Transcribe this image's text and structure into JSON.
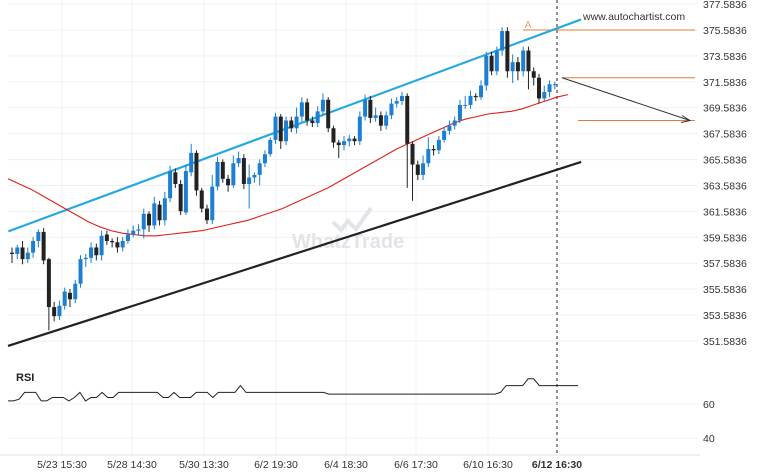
{
  "source_label": "www.autochartist.com",
  "watermark": "WhatzTrade",
  "chart_data": {
    "type": "candlestick",
    "y_ticks": [
      "377.5836",
      "375.5836",
      "373.5836",
      "371.5836",
      "369.5836",
      "367.5836",
      "365.5836",
      "363.5836",
      "361.5836",
      "359.5836",
      "357.5836",
      "355.5836",
      "353.5836",
      "351.5836"
    ],
    "ylim": [
      350.5,
      377.9
    ],
    "x_labels": [
      "5/23 15:30",
      "5/28 14:30",
      "5/30 13:30",
      "6/2 19:30",
      "6/4 18:30",
      "6/6 17:30",
      "6/10 16:30",
      "6/12 16:30"
    ],
    "current_time_label": "6/12 16:30",
    "candles": [
      [
        358.4,
        358.3,
        358.8,
        357.6
      ],
      [
        358.3,
        358.8,
        359.0,
        357.9
      ],
      [
        358.8,
        357.9,
        359.3,
        357.5
      ],
      [
        357.9,
        358.4,
        358.8,
        357.6
      ],
      [
        358.4,
        359.3,
        359.6,
        358.0
      ],
      [
        359.3,
        360.0,
        360.2,
        358.8
      ],
      [
        360.0,
        357.8,
        360.3,
        357.5
      ],
      [
        357.9,
        354.2,
        358.0,
        352.4
      ],
      [
        354.2,
        353.5,
        354.6,
        353.1
      ],
      [
        353.5,
        354.3,
        354.7,
        353.2
      ],
      [
        354.3,
        355.4,
        355.7,
        354.0
      ],
      [
        355.3,
        354.8,
        355.6,
        354.2
      ],
      [
        354.8,
        356.0,
        356.3,
        354.5
      ],
      [
        356.0,
        357.9,
        358.2,
        355.7
      ],
      [
        357.9,
        358.0,
        358.3,
        357.3
      ],
      [
        358.0,
        358.8,
        359.2,
        357.6
      ],
      [
        358.8,
        358.2,
        359.1,
        357.8
      ],
      [
        358.2,
        359.7,
        360.1,
        357.8
      ],
      [
        359.8,
        359.3,
        360.1,
        359.0
      ],
      [
        359.3,
        359.2,
        359.5,
        358.8
      ],
      [
        359.2,
        358.8,
        359.6,
        358.4
      ],
      [
        358.8,
        359.3,
        359.6,
        358.5
      ],
      [
        359.3,
        359.8,
        360.2,
        359.1
      ],
      [
        359.8,
        360.1,
        360.5,
        359.6
      ],
      [
        360.1,
        360.2,
        360.6,
        359.7
      ],
      [
        360.2,
        361.4,
        361.8,
        359.5
      ],
      [
        361.4,
        360.5,
        361.6,
        360.0
      ],
      [
        360.5,
        362.2,
        362.7,
        360.2
      ],
      [
        362.1,
        360.9,
        362.4,
        360.5
      ],
      [
        360.9,
        362.6,
        363.1,
        360.5
      ],
      [
        362.6,
        364.7,
        365.1,
        362.3
      ],
      [
        364.6,
        363.7,
        364.9,
        363.4
      ],
      [
        363.7,
        361.6,
        364.0,
        361.3
      ],
      [
        361.5,
        364.7,
        365.2,
        361.3
      ],
      [
        364.6,
        366.1,
        366.8,
        364.3
      ],
      [
        366.1,
        363.2,
        366.3,
        362.8
      ],
      [
        363.2,
        361.8,
        363.4,
        361.5
      ],
      [
        361.8,
        360.9,
        362.1,
        360.6
      ],
      [
        360.9,
        363.5,
        364.4,
        360.6
      ],
      [
        363.5,
        365.4,
        365.8,
        363.2
      ],
      [
        365.4,
        364.1,
        365.6,
        363.8
      ],
      [
        364.1,
        363.6,
        364.4,
        363.1
      ],
      [
        363.6,
        365.3,
        365.9,
        363.4
      ],
      [
        365.3,
        365.7,
        366.2,
        365.0
      ],
      [
        365.7,
        363.7,
        366.0,
        363.3
      ],
      [
        363.7,
        364.2,
        365.2,
        361.8
      ],
      [
        364.2,
        364.4,
        364.6,
        363.8
      ],
      [
        364.4,
        365.3,
        365.6,
        363.6
      ],
      [
        365.3,
        366.0,
        366.3,
        365.0
      ],
      [
        366.0,
        367.1,
        367.3,
        365.8
      ],
      [
        367.1,
        368.9,
        369.2,
        366.8
      ],
      [
        368.9,
        367.0,
        369.1,
        366.4
      ],
      [
        367.0,
        368.6,
        368.9,
        366.7
      ],
      [
        368.6,
        368.0,
        368.9,
        367.7
      ],
      [
        368.0,
        368.9,
        369.6,
        367.6
      ],
      [
        368.9,
        370.0,
        370.4,
        368.5
      ],
      [
        370.0,
        368.6,
        370.3,
        368.2
      ],
      [
        368.6,
        368.4,
        368.9,
        368.1
      ],
      [
        368.4,
        369.3,
        369.7,
        368.1
      ],
      [
        369.3,
        370.2,
        370.7,
        369.0
      ],
      [
        370.2,
        368.0,
        370.4,
        367.7
      ],
      [
        368.0,
        366.9,
        368.2,
        366.5
      ],
      [
        366.9,
        366.7,
        367.1,
        365.7
      ],
      [
        366.7,
        367.0,
        367.4,
        366.3
      ],
      [
        367.0,
        367.2,
        367.5,
        366.6
      ],
      [
        367.2,
        367.0,
        367.4,
        366.7
      ],
      [
        367.0,
        368.9,
        369.3,
        366.7
      ],
      [
        368.9,
        370.2,
        370.6,
        368.6
      ],
      [
        370.2,
        368.8,
        370.5,
        368.4
      ],
      [
        368.8,
        369.0,
        369.6,
        368.5
      ],
      [
        369.0,
        368.2,
        369.3,
        367.8
      ],
      [
        368.2,
        369.0,
        369.3,
        367.9
      ],
      [
        369.0,
        369.9,
        370.3,
        368.7
      ],
      [
        369.9,
        370.1,
        370.4,
        369.6
      ],
      [
        370.1,
        370.5,
        370.8,
        369.8
      ],
      [
        370.5,
        366.8,
        370.7,
        363.4
      ],
      [
        366.8,
        365.2,
        367.0,
        362.4
      ],
      [
        365.2,
        364.4,
        365.5,
        364.0
      ],
      [
        364.4,
        365.3,
        365.9,
        364.0
      ],
      [
        365.3,
        366.4,
        367.3,
        365.0
      ],
      [
        366.4,
        366.3,
        366.7,
        365.9
      ],
      [
        366.3,
        367.1,
        367.4,
        366.0
      ],
      [
        367.1,
        367.8,
        368.1,
        366.9
      ],
      [
        367.8,
        368.2,
        368.6,
        367.5
      ],
      [
        368.2,
        368.6,
        368.9,
        367.9
      ],
      [
        368.6,
        369.8,
        370.2,
        368.4
      ],
      [
        369.8,
        369.8,
        370.5,
        369.5
      ],
      [
        369.8,
        370.5,
        370.9,
        369.5
      ],
      [
        370.5,
        370.4,
        370.7,
        370.1
      ],
      [
        370.4,
        371.3,
        371.7,
        370.2
      ],
      [
        371.3,
        373.6,
        373.9,
        370.9
      ],
      [
        373.6,
        372.4,
        373.9,
        372.1
      ],
      [
        372.4,
        374.0,
        374.3,
        372.1
      ],
      [
        374.0,
        375.5,
        375.8,
        373.6
      ],
      [
        375.5,
        372.4,
        375.8,
        371.9
      ],
      [
        372.4,
        373.1,
        373.7,
        371.5
      ],
      [
        373.1,
        372.4,
        373.5,
        371.7
      ],
      [
        372.4,
        374.0,
        374.3,
        372.0
      ],
      [
        374.0,
        372.4,
        374.3,
        371.0
      ],
      [
        372.4,
        371.9,
        372.7,
        371.3
      ],
      [
        371.9,
        370.3,
        372.2,
        369.9
      ],
      [
        370.3,
        370.8,
        371.3,
        370.1
      ],
      [
        370.8,
        371.4,
        371.7,
        370.4
      ],
      [
        371.4,
        371.4,
        371.6,
        371.0
      ]
    ],
    "moving_average": [
      364.1,
      363.7,
      363.3,
      362.8,
      362.3,
      361.8,
      361.3,
      360.8,
      360.4,
      360.1,
      359.9,
      359.8,
      359.7,
      359.7,
      359.8,
      359.9,
      360.0,
      360.1,
      360.3,
      360.5,
      360.7,
      360.9,
      361.2,
      361.5,
      361.8,
      362.2,
      362.6,
      363.0,
      363.4,
      363.9,
      364.4,
      364.9,
      365.4,
      365.9,
      366.4,
      366.8,
      367.2,
      367.6,
      368.0,
      368.4,
      368.7,
      368.9,
      369.1,
      369.2,
      369.3,
      369.5,
      369.8,
      370.1,
      370.4,
      370.6
    ],
    "channel_upper": {
      "from": [
        5,
        360.9
      ],
      "to": [
        108,
        376.4
      ]
    },
    "channel_lower": {
      "from": [
        0,
        351.2
      ],
      "to": [
        108,
        365.4
      ]
    },
    "resistance_level": 375.5836,
    "mid_level": 371.9,
    "target_level": 368.6,
    "forecast_arrow": {
      "from": 371.9,
      "to": 368.6
    },
    "pattern_marker": "A",
    "rsi": {
      "title": "RSI",
      "y_ticks": [
        "60",
        "40"
      ],
      "ylim": [
        30,
        80
      ],
      "values": [
        53,
        53,
        54,
        58,
        58,
        58,
        53,
        53,
        55,
        55,
        55,
        53,
        55,
        58,
        53,
        55,
        55,
        58,
        55,
        55,
        58,
        58,
        58,
        58,
        58,
        58,
        58,
        58,
        55,
        55,
        58,
        55,
        55,
        55,
        58,
        58,
        58,
        55,
        58,
        58,
        58,
        58,
        62,
        58,
        58,
        58,
        58,
        58,
        58,
        58,
        58,
        58,
        58,
        58,
        58,
        58,
        58,
        58,
        57,
        57,
        57,
        57,
        57,
        57,
        57,
        57,
        57,
        57,
        57,
        57,
        57,
        57,
        57,
        57,
        57,
        57,
        57,
        57,
        57,
        57,
        57,
        57,
        57,
        57,
        57,
        57,
        57,
        57,
        57,
        58,
        62,
        62,
        62,
        62,
        66,
        66,
        62,
        62,
        62,
        62,
        62,
        62,
        62,
        62
      ]
    }
  }
}
